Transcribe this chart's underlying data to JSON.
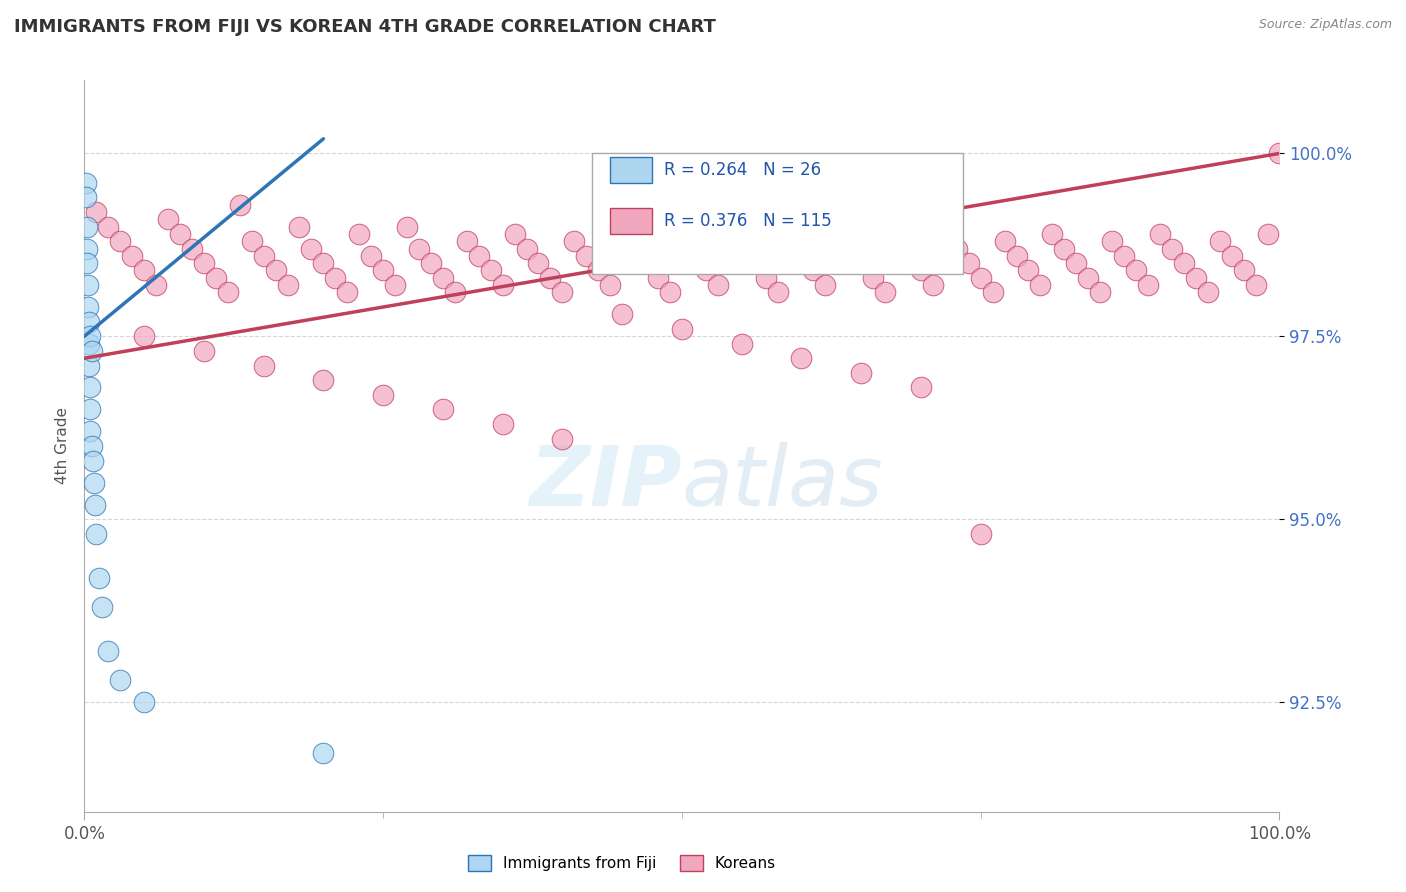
{
  "title": "IMMIGRANTS FROM FIJI VS KOREAN 4TH GRADE CORRELATION CHART",
  "source": "Source: ZipAtlas.com",
  "ylabel": "4th Grade",
  "ytick_labels": [
    "92.5%",
    "95.0%",
    "97.5%",
    "100.0%"
  ],
  "ytick_values": [
    92.5,
    95.0,
    97.5,
    100.0
  ],
  "fiji_R": "0.264",
  "fiji_N": "26",
  "korean_R": "0.376",
  "korean_N": "115",
  "fiji_color": "#aed6f1",
  "korean_color": "#f1a7c0",
  "fiji_line_color": "#2e75b6",
  "korean_line_color": "#c0405a",
  "watermark_zip": "ZIP",
  "watermark_atlas": "atlas",
  "background_color": "#ffffff",
  "fiji_scatter_x": [
    0.1,
    0.15,
    0.2,
    0.2,
    0.25,
    0.3,
    0.3,
    0.35,
    0.4,
    0.4,
    0.45,
    0.5,
    0.5,
    0.5,
    0.6,
    0.6,
    0.7,
    0.8,
    0.9,
    1.0,
    1.2,
    1.5,
    2.0,
    3.0,
    5.0,
    20.0
  ],
  "fiji_scatter_y": [
    99.6,
    99.4,
    99.0,
    98.7,
    98.5,
    98.2,
    97.9,
    97.7,
    97.4,
    97.1,
    96.8,
    97.5,
    96.5,
    96.2,
    97.3,
    96.0,
    95.8,
    95.5,
    95.2,
    94.8,
    94.2,
    93.8,
    93.2,
    92.8,
    92.5,
    91.8
  ],
  "korean_scatter_x": [
    1.0,
    2.0,
    3.0,
    4.0,
    5.0,
    6.0,
    7.0,
    8.0,
    9.0,
    10.0,
    11.0,
    12.0,
    13.0,
    14.0,
    15.0,
    16.0,
    17.0,
    18.0,
    19.0,
    20.0,
    21.0,
    22.0,
    23.0,
    24.0,
    25.0,
    26.0,
    27.0,
    28.0,
    29.0,
    30.0,
    31.0,
    32.0,
    33.0,
    34.0,
    35.0,
    36.0,
    37.0,
    38.0,
    39.0,
    40.0,
    41.0,
    42.0,
    43.0,
    44.0,
    45.0,
    46.0,
    47.0,
    48.0,
    49.0,
    50.0,
    51.0,
    52.0,
    53.0,
    54.0,
    55.0,
    56.0,
    57.0,
    58.0,
    59.0,
    60.0,
    61.0,
    62.0,
    63.0,
    64.0,
    65.0,
    66.0,
    67.0,
    68.0,
    69.0,
    70.0,
    71.0,
    72.0,
    73.0,
    74.0,
    75.0,
    76.0,
    77.0,
    78.0,
    79.0,
    80.0,
    81.0,
    82.0,
    83.0,
    84.0,
    85.0,
    86.0,
    87.0,
    88.0,
    89.0,
    90.0,
    91.0,
    92.0,
    93.0,
    94.0,
    95.0,
    96.0,
    97.0,
    98.0,
    99.0,
    100.0,
    5.0,
    10.0,
    15.0,
    20.0,
    25.0,
    30.0,
    35.0,
    40.0,
    45.0,
    50.0,
    55.0,
    60.0,
    65.0,
    70.0,
    75.0
  ],
  "korean_scatter_y": [
    99.2,
    99.0,
    98.8,
    98.6,
    98.4,
    98.2,
    99.1,
    98.9,
    98.7,
    98.5,
    98.3,
    98.1,
    99.3,
    98.8,
    98.6,
    98.4,
    98.2,
    99.0,
    98.7,
    98.5,
    98.3,
    98.1,
    98.9,
    98.6,
    98.4,
    98.2,
    99.0,
    98.7,
    98.5,
    98.3,
    98.1,
    98.8,
    98.6,
    98.4,
    98.2,
    98.9,
    98.7,
    98.5,
    98.3,
    98.1,
    98.8,
    98.6,
    98.4,
    98.2,
    98.9,
    98.7,
    98.5,
    98.3,
    98.1,
    98.8,
    98.6,
    98.4,
    98.2,
    98.9,
    98.7,
    98.5,
    98.3,
    98.1,
    98.8,
    98.6,
    98.4,
    98.2,
    98.9,
    98.7,
    98.5,
    98.3,
    98.1,
    98.8,
    98.6,
    98.4,
    98.2,
    98.9,
    98.7,
    98.5,
    98.3,
    98.1,
    98.8,
    98.6,
    98.4,
    98.2,
    98.9,
    98.7,
    98.5,
    98.3,
    98.1,
    98.8,
    98.6,
    98.4,
    98.2,
    98.9,
    98.7,
    98.5,
    98.3,
    98.1,
    98.8,
    98.6,
    98.4,
    98.2,
    98.9,
    100.0,
    97.5,
    97.3,
    97.1,
    96.9,
    96.7,
    96.5,
    96.3,
    96.1,
    97.8,
    97.6,
    97.4,
    97.2,
    97.0,
    96.8,
    94.8
  ],
  "fiji_line_start_x": 0.0,
  "fiji_line_start_y": 97.5,
  "fiji_line_end_x": 20.0,
  "fiji_line_end_y": 100.2,
  "korean_line_start_x": 0.0,
  "korean_line_start_y": 97.2,
  "korean_line_end_x": 100.0,
  "korean_line_end_y": 100.0,
  "xlim": [
    0,
    100
  ],
  "ylim": [
    91.0,
    101.0
  ]
}
